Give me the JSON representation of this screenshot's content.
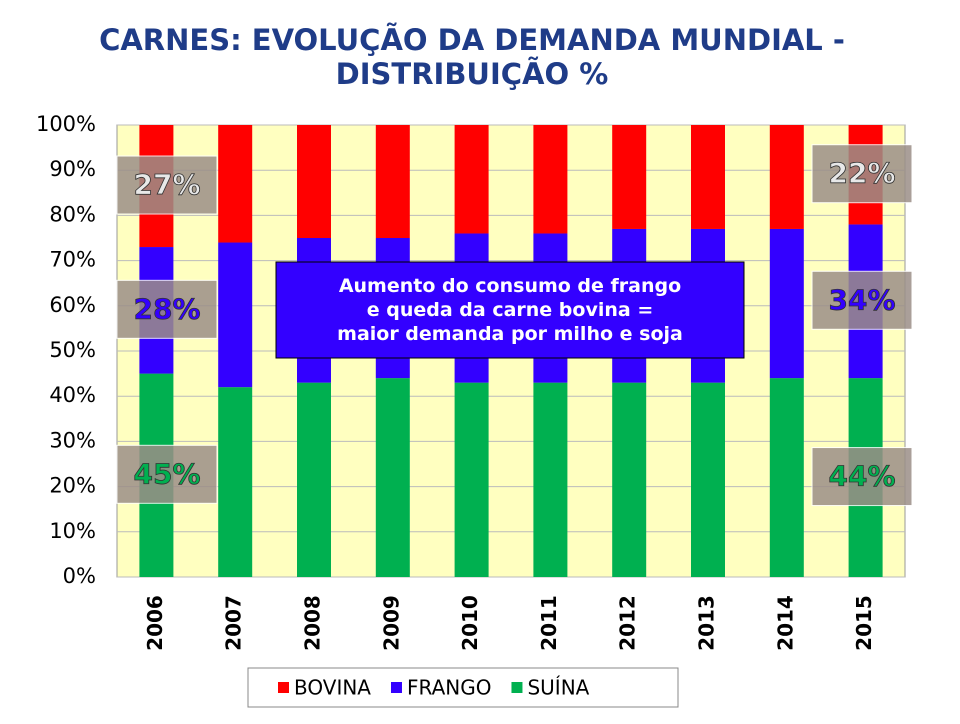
{
  "chart_data": {
    "type": "stacked_bar",
    "title": "CARNES: EVOLUÇÃO DA DEMANDA MUNDIAL - DISTRIBUIÇÃO %",
    "annotation": "Aumento do consumo de frango e queda da carne bovina = maior demanda por milho e soja",
    "categories": [
      "2006",
      "2007",
      "2008",
      "2009",
      "2010",
      "2011",
      "2012",
      "2013",
      "2014",
      "2015"
    ],
    "series": [
      {
        "name": "SUÍNA",
        "color": "#00b050",
        "values": [
          45,
          42,
          43,
          44,
          43,
          43,
          43,
          43,
          44,
          44
        ],
        "value_labels": [
          "45%",
          null,
          null,
          null,
          null,
          null,
          null,
          null,
          null,
          "44%"
        ],
        "label_color": "#00b050"
      },
      {
        "name": "FRANGO",
        "color": "#3300ff",
        "values": [
          28,
          32,
          32,
          31,
          33,
          33,
          34,
          34,
          33,
          34
        ],
        "value_labels": [
          "28%",
          null,
          null,
          null,
          null,
          null,
          null,
          null,
          null,
          "34%"
        ],
        "label_color": "#3300ff"
      },
      {
        "name": "BOVINA",
        "color": "#ff0000",
        "values": [
          27,
          26,
          25,
          25,
          24,
          24,
          23,
          23,
          23,
          22
        ],
        "value_labels": [
          "27%",
          null,
          null,
          null,
          null,
          null,
          null,
          null,
          null,
          "22%"
        ],
        "label_color": "#e8e8e8"
      }
    ],
    "ylim": [
      0,
      100
    ],
    "yticks": [
      {
        "value": 0,
        "label": "0%"
      },
      {
        "value": 10,
        "label": "10%"
      },
      {
        "value": 20,
        "label": "20%"
      },
      {
        "value": 30,
        "label": "30%"
      },
      {
        "value": 40,
        "label": "40%"
      },
      {
        "value": 50,
        "label": "50%"
      },
      {
        "value": 60,
        "label": "60%"
      },
      {
        "value": 70,
        "label": "70%"
      },
      {
        "value": 80,
        "label": "80%"
      },
      {
        "value": 90,
        "label": "90%"
      },
      {
        "value": 100,
        "label": "100%"
      }
    ],
    "grid": true
  }
}
